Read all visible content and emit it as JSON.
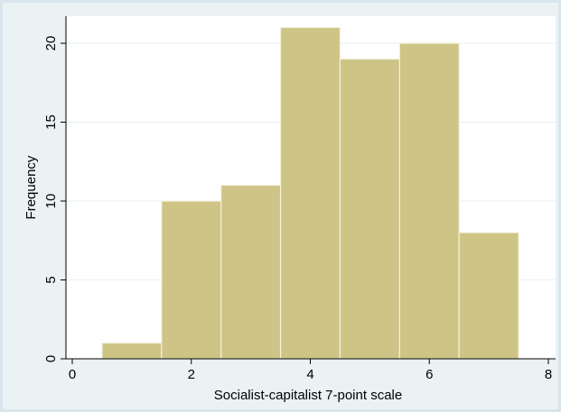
{
  "chart_data": {
    "type": "bar",
    "xlabel": "Socialist-capitalist 7-point scale",
    "ylabel": "Frequency",
    "bins": [
      {
        "x_start": 0.5,
        "x_end": 1.5,
        "value": 1
      },
      {
        "x_start": 1.5,
        "x_end": 2.5,
        "value": 10
      },
      {
        "x_start": 2.5,
        "x_end": 3.5,
        "value": 11
      },
      {
        "x_start": 3.5,
        "x_end": 4.5,
        "value": 21
      },
      {
        "x_start": 4.5,
        "x_end": 5.5,
        "value": 19
      },
      {
        "x_start": 5.5,
        "x_end": 6.5,
        "value": 20
      },
      {
        "x_start": 6.5,
        "x_end": 7.5,
        "value": 8
      }
    ],
    "xlim": [
      -0.25,
      8.25
    ],
    "ylim": [
      0,
      22
    ],
    "xticks": [
      0,
      2,
      4,
      6,
      8
    ],
    "yticks": [
      0,
      5,
      10,
      15,
      20
    ],
    "grid": true,
    "bar_color": "#cdc486",
    "bar_edge_color": "#f4f1dc",
    "plot_background": "#ffffff",
    "outer_background": "#eaf2f3",
    "grid_color": "#eaf2f3"
  }
}
